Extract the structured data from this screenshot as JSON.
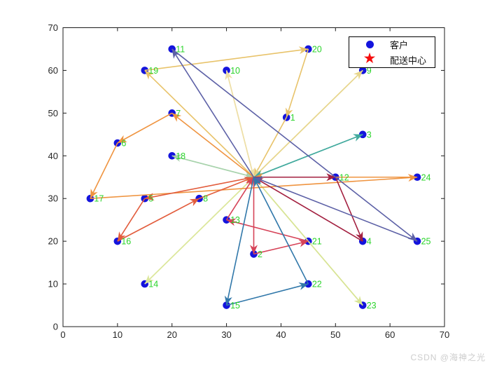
{
  "watermark": "CSDN @海神之光",
  "legend": {
    "items": [
      {
        "glyph": "dot",
        "color": "#1414dd",
        "label": "客户"
      },
      {
        "glyph": "star",
        "color": "#f50d0d",
        "label": "配送中心"
      }
    ]
  },
  "chart_data": {
    "type": "scatter",
    "title": "",
    "xlabel": "",
    "ylabel": "",
    "xlim": [
      0,
      70
    ],
    "ylim": [
      0,
      70
    ],
    "xticks": [
      0,
      10,
      20,
      30,
      40,
      50,
      60,
      70
    ],
    "yticks": [
      0,
      10,
      20,
      30,
      40,
      50,
      60,
      70
    ],
    "grid": false,
    "legend_position": "top-right",
    "axis_color": "#1c1c1c",
    "tick_label_color": "#262626",
    "customer_color": "#1414dd",
    "depot_color": "#f50d0d",
    "point_label_color": "#2bd42b",
    "depot": {
      "x": 35,
      "y": 35
    },
    "customers": [
      {
        "id": 1,
        "x": 41,
        "y": 49
      },
      {
        "id": 2,
        "x": 35,
        "y": 17
      },
      {
        "id": 3,
        "x": 55,
        "y": 45
      },
      {
        "id": 4,
        "x": 55,
        "y": 20
      },
      {
        "id": 5,
        "x": 15,
        "y": 30
      },
      {
        "id": 6,
        "x": 10,
        "y": 43
      },
      {
        "id": 7,
        "x": 20,
        "y": 50
      },
      {
        "id": 8,
        "x": 25,
        "y": 30
      },
      {
        "id": 9,
        "x": 55,
        "y": 60
      },
      {
        "id": 10,
        "x": 30,
        "y": 60
      },
      {
        "id": 11,
        "x": 20,
        "y": 65
      },
      {
        "id": 12,
        "x": 50,
        "y": 35
      },
      {
        "id": 13,
        "x": 30,
        "y": 25
      },
      {
        "id": 14,
        "x": 15,
        "y": 10
      },
      {
        "id": 15,
        "x": 30,
        "y": 5
      },
      {
        "id": 16,
        "x": 10,
        "y": 20
      },
      {
        "id": 17,
        "x": 5,
        "y": 30
      },
      {
        "id": 18,
        "x": 20,
        "y": 40
      },
      {
        "id": 19,
        "x": 15,
        "y": 60
      },
      {
        "id": 20,
        "x": 45,
        "y": 65
      },
      {
        "id": 21,
        "x": 45,
        "y": 20
      },
      {
        "id": 22,
        "x": 45,
        "y": 10
      },
      {
        "id": 23,
        "x": 55,
        "y": 5
      },
      {
        "id": 24,
        "x": 65,
        "y": 35
      },
      {
        "id": 25,
        "x": 65,
        "y": 20
      }
    ],
    "routes": [
      {
        "color": "#e8c36a",
        "stops": [
          0,
          19,
          20,
          1,
          0
        ]
      },
      {
        "color": "#eedfa7",
        "stops": [
          0,
          10,
          0
        ]
      },
      {
        "color": "#e7d68d",
        "stops": [
          0,
          9,
          0
        ]
      },
      {
        "color": "#dce79c",
        "stops": [
          0,
          14,
          0
        ]
      },
      {
        "color": "#d8e495",
        "stops": [
          0,
          23,
          0
        ]
      },
      {
        "color": "#a8d3ac",
        "stops": [
          0,
          18,
          0
        ]
      },
      {
        "color": "#42aa9e",
        "stops": [
          0,
          3,
          0
        ]
      },
      {
        "color": "#ef9440",
        "stops": [
          0,
          7,
          6,
          17,
          24,
          0
        ]
      },
      {
        "color": "#e25c3c",
        "stops": [
          0,
          5,
          16,
          8,
          0
        ]
      },
      {
        "color": "#d64358",
        "stops": [
          0,
          2,
          21,
          13,
          0
        ]
      },
      {
        "color": "#a32040",
        "stops": [
          0,
          12,
          4,
          0
        ]
      },
      {
        "color": "#5c60a6",
        "stops": [
          0,
          11,
          25,
          0
        ]
      },
      {
        "color": "#3178aa",
        "stops": [
          0,
          15,
          22,
          0
        ]
      }
    ]
  }
}
